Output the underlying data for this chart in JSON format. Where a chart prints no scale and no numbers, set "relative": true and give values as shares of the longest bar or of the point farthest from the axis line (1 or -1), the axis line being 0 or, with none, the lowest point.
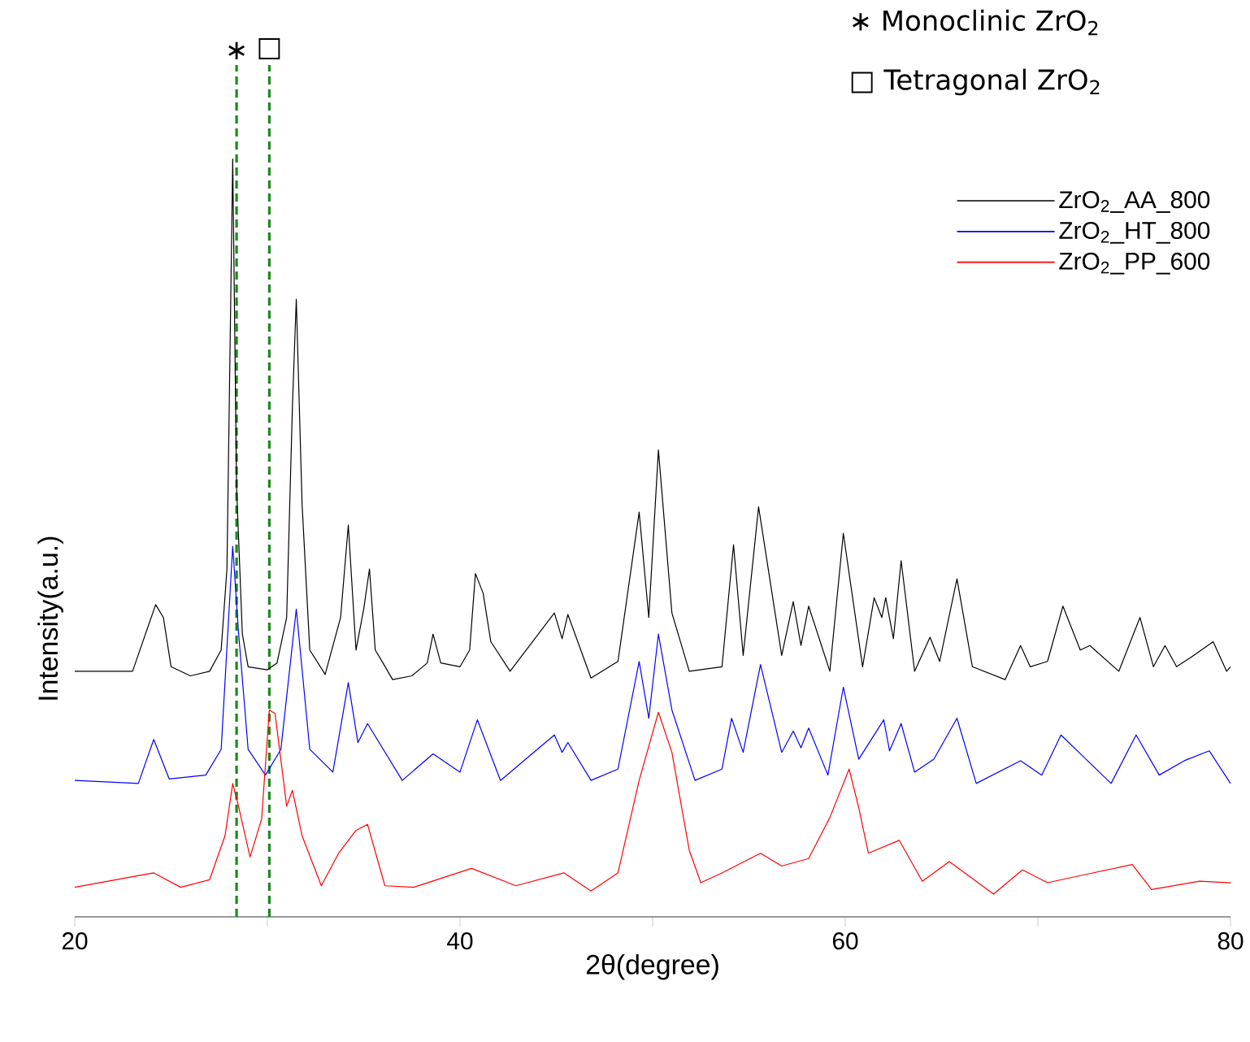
{
  "chart_data": {
    "type": "line",
    "relative": true,
    "xlabel": "2θ(degree)",
    "ylabel": "Intensity(a.u.)",
    "xlim": [
      20,
      80
    ],
    "xticks": [
      20,
      {
        "value": 30,
        "label": null
      },
      40,
      {
        "value": 50,
        "label": null
      },
      60,
      {
        "value": 70,
        "label": null
      },
      80
    ],
    "legend": "top right",
    "line_style": "solid",
    "annotations": [
      "∗ Monoclinic ZrO$_{2}$",
      "□ Tetragonal ZrO$_{2}$"
    ],
    "ref_lines": [
      {
        "axis": "x",
        "value": 28.4,
        "label": "∗",
        "color": "#1a8a1a",
        "line_style": "dashed"
      },
      {
        "axis": "x",
        "value": 30.1,
        "label": "□",
        "color": "#1a8a1a",
        "line_style": "dashed"
      }
    ],
    "series": [
      {
        "name": "ZrO$_{2}$_AA_800",
        "color": "#000000",
        "x": [
          20,
          23,
          24.2,
          24.6,
          25,
          26,
          27,
          27.6,
          27.9,
          28.2,
          28.4,
          28.7,
          29,
          30,
          30.5,
          31.0,
          31.3,
          31.5,
          31.8,
          32.2,
          33,
          33.8,
          34.2,
          34.6,
          35.0,
          35.3,
          35.6,
          36,
          36.5,
          37.5,
          38.3,
          38.6,
          39,
          40,
          40.5,
          40.8,
          41.2,
          41.6,
          42.6,
          44.9,
          45.3,
          45.6,
          46.8,
          48.2,
          49.3,
          49.8,
          50.3,
          51.0,
          51.9,
          53.6,
          54.2,
          54.7,
          55.5,
          56.7,
          57.3,
          57.7,
          58.1,
          59.2,
          59.9,
          60.9,
          61.5,
          61.9,
          62.1,
          62.5,
          62.9,
          63.6,
          64.4,
          64.9,
          65.8,
          66.6,
          68.3,
          69.1,
          69.6,
          70.5,
          71.3,
          72.2,
          72.7,
          74.2,
          75.3,
          76.0,
          76.6,
          77.2,
          78.1,
          79.1,
          79.8,
          80
        ],
        "values": [
          0.324,
          0.324,
          0.412,
          0.395,
          0.33,
          0.318,
          0.324,
          0.352,
          0.459,
          1.0,
          0.567,
          0.373,
          0.33,
          0.326,
          0.335,
          0.395,
          0.674,
          0.815,
          0.545,
          0.352,
          0.32,
          0.395,
          0.517,
          0.352,
          0.406,
          0.459,
          0.352,
          0.335,
          0.313,
          0.318,
          0.335,
          0.373,
          0.335,
          0.33,
          0.352,
          0.453,
          0.427,
          0.363,
          0.324,
          0.401,
          0.367,
          0.399,
          0.315,
          0.337,
          0.534,
          0.395,
          0.616,
          0.401,
          0.324,
          0.33,
          0.491,
          0.345,
          0.541,
          0.345,
          0.416,
          0.358,
          0.41,
          0.324,
          0.506,
          0.33,
          0.421,
          0.395,
          0.421,
          0.367,
          0.47,
          0.324,
          0.369,
          0.337,
          0.446,
          0.33,
          0.313,
          0.358,
          0.33,
          0.337,
          0.41,
          0.352,
          0.358,
          0.324,
          0.395,
          0.33,
          0.358,
          0.33,
          0.345,
          0.363,
          0.324,
          0.33
        ]
      },
      {
        "name": "ZrO$_{2}$_HT_800",
        "color": "#0000ff",
        "x": [
          20,
          23.3,
          24.1,
          24.9,
          26.8,
          27.6,
          28.2,
          28.5,
          29.0,
          29.9,
          30.7,
          31.5,
          32.2,
          33.4,
          34.2,
          34.7,
          35.2,
          37.0,
          38.6,
          40.0,
          40.9,
          42.1,
          44.9,
          45.3,
          45.6,
          46.8,
          48.2,
          49.3,
          49.8,
          50.3,
          51.0,
          52.2,
          53.6,
          54.1,
          54.7,
          55.6,
          56.7,
          57.3,
          57.7,
          58.1,
          59.1,
          59.9,
          60.7,
          62.0,
          62.3,
          62.9,
          63.6,
          64.6,
          65.8,
          66.8,
          69.1,
          70.2,
          71.2,
          72.5,
          73.8,
          75.1,
          76.3,
          77.6,
          78.9,
          80.0
        ],
        "values": [
          0.18,
          0.176,
          0.234,
          0.182,
          0.187,
          0.221,
          0.489,
          0.376,
          0.221,
          0.187,
          0.221,
          0.406,
          0.221,
          0.191,
          0.309,
          0.23,
          0.255,
          0.18,
          0.215,
          0.191,
          0.26,
          0.18,
          0.24,
          0.217,
          0.23,
          0.18,
          0.195,
          0.337,
          0.262,
          0.373,
          0.273,
          0.18,
          0.195,
          0.262,
          0.217,
          0.333,
          0.217,
          0.245,
          0.223,
          0.249,
          0.187,
          0.303,
          0.208,
          0.26,
          0.219,
          0.255,
          0.191,
          0.208,
          0.262,
          0.176,
          0.206,
          0.187,
          0.24,
          0.208,
          0.176,
          0.24,
          0.187,
          0.206,
          0.219,
          0.176
        ]
      },
      {
        "name": "ZrO$_{2}$_PP_600",
        "color": "#ff0000",
        "x": [
          20,
          24.1,
          25.5,
          27.0,
          27.8,
          28.2,
          28.5,
          29.1,
          29.7,
          30.1,
          30.4,
          31.0,
          31.3,
          31.8,
          32.8,
          33.7,
          34.6,
          35.2,
          36.1,
          37.6,
          40.6,
          42.9,
          45.4,
          46.8,
          48.2,
          49.3,
          50.3,
          51.0,
          51.9,
          52.5,
          53.6,
          55.6,
          56.7,
          58.1,
          59.2,
          60.2,
          60.7,
          61.2,
          62.8,
          64.0,
          65.4,
          67.7,
          69.2,
          70.5,
          72.5,
          74.9,
          75.9,
          78.4,
          80.0
        ],
        "values": [
          0.039,
          0.058,
          0.039,
          0.049,
          0.107,
          0.176,
          0.146,
          0.079,
          0.129,
          0.273,
          0.268,
          0.146,
          0.167,
          0.107,
          0.041,
          0.084,
          0.114,
          0.122,
          0.041,
          0.039,
          0.064,
          0.041,
          0.058,
          0.034,
          0.058,
          0.18,
          0.27,
          0.217,
          0.088,
          0.045,
          0.058,
          0.084,
          0.067,
          0.077,
          0.131,
          0.195,
          0.144,
          0.084,
          0.101,
          0.047,
          0.073,
          0.03,
          0.062,
          0.045,
          0.056,
          0.069,
          0.036,
          0.047,
          0.045
        ]
      }
    ]
  }
}
